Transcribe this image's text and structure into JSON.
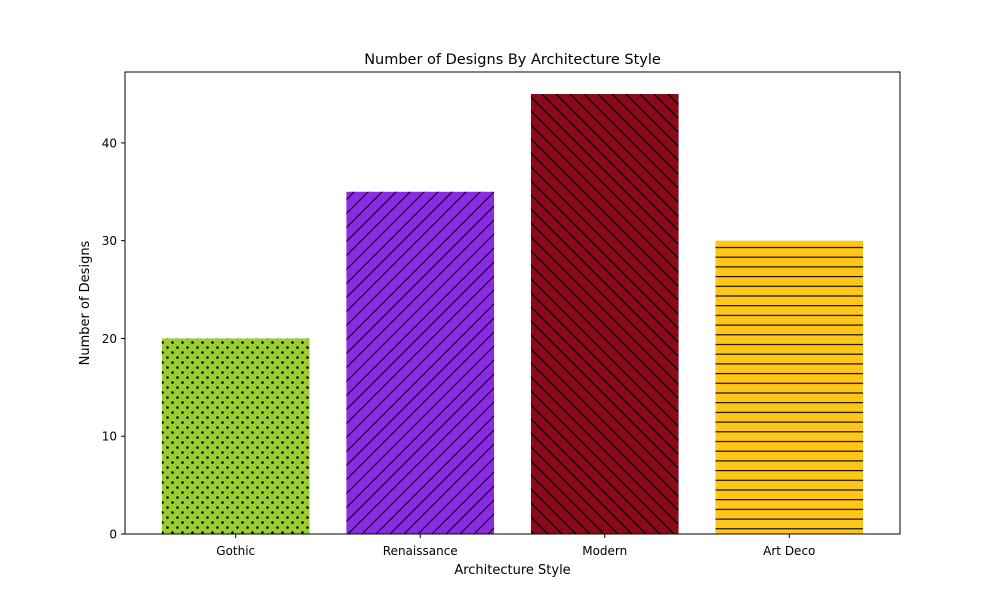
{
  "chart_data": {
    "type": "bar",
    "title": "Number of Designs By Architecture Style",
    "xlabel": "Architecture Style",
    "ylabel": "Number of Designs",
    "categories": [
      "Gothic",
      "Renaissance",
      "Modern",
      "Art Deco"
    ],
    "values": [
      20,
      35,
      45,
      30
    ],
    "colors": [
      "#9acd32",
      "#8a2be2",
      "#8b0a1a",
      "#ffc61a"
    ],
    "hatches": [
      "dots",
      "forward-diagonal",
      "back-diagonal",
      "horizontal"
    ],
    "ylim": [
      0,
      47.25
    ],
    "yticks": [
      0,
      10,
      20,
      30,
      40
    ],
    "grid": false,
    "legend": "none"
  }
}
